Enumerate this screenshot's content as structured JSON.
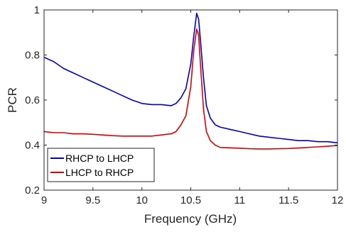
{
  "chart_data": {
    "type": "line",
    "title": "",
    "xlabel": "Frequency (GHz)",
    "ylabel": "PCR",
    "xlim": [
      9,
      12
    ],
    "ylim": [
      0.2,
      1
    ],
    "xticks": [
      9,
      9.5,
      10,
      10.5,
      11,
      11.5,
      12
    ],
    "xtick_labels": [
      "9",
      "9.5",
      "10",
      "10.5",
      "11",
      "11.5",
      "12"
    ],
    "yticks": [
      0.2,
      0.4,
      0.6,
      0.8,
      1
    ],
    "ytick_labels": [
      "0.2",
      "0.4",
      "0.6",
      "0.8",
      "1"
    ],
    "grid": false,
    "legend_position": "bottom-left",
    "series": [
      {
        "name": "RHCP to LHCP",
        "color": "#0000cc",
        "x": [
          9.0,
          9.1,
          9.2,
          9.3,
          9.4,
          9.5,
          9.6,
          9.7,
          9.8,
          9.9,
          10.0,
          10.1,
          10.2,
          10.3,
          10.35,
          10.4,
          10.45,
          10.5,
          10.53,
          10.56,
          10.58,
          10.6,
          10.63,
          10.66,
          10.7,
          10.75,
          10.8,
          10.9,
          11.0,
          11.1,
          11.2,
          11.3,
          11.4,
          11.5,
          11.6,
          11.7,
          11.8,
          11.9,
          12.0
        ],
        "y": [
          0.79,
          0.77,
          0.74,
          0.72,
          0.7,
          0.68,
          0.66,
          0.64,
          0.62,
          0.6,
          0.585,
          0.58,
          0.58,
          0.575,
          0.585,
          0.61,
          0.65,
          0.76,
          0.88,
          0.985,
          0.96,
          0.86,
          0.7,
          0.575,
          0.52,
          0.49,
          0.48,
          0.47,
          0.46,
          0.45,
          0.44,
          0.435,
          0.43,
          0.425,
          0.42,
          0.42,
          0.415,
          0.415,
          0.41
        ]
      },
      {
        "name": "LHCP to RHCP",
        "color": "#e00000",
        "x": [
          9.0,
          9.1,
          9.2,
          9.3,
          9.4,
          9.5,
          9.6,
          9.7,
          9.8,
          9.9,
          10.0,
          10.1,
          10.2,
          10.3,
          10.35,
          10.4,
          10.45,
          10.5,
          10.53,
          10.56,
          10.58,
          10.6,
          10.63,
          10.66,
          10.7,
          10.75,
          10.8,
          10.9,
          11.0,
          11.1,
          11.2,
          11.3,
          11.4,
          11.5,
          11.6,
          11.7,
          11.8,
          11.9,
          12.0
        ],
        "y": [
          0.46,
          0.455,
          0.455,
          0.45,
          0.45,
          0.448,
          0.445,
          0.442,
          0.44,
          0.44,
          0.44,
          0.44,
          0.445,
          0.45,
          0.46,
          0.49,
          0.53,
          0.66,
          0.82,
          0.915,
          0.89,
          0.75,
          0.56,
          0.46,
          0.42,
          0.4,
          0.39,
          0.388,
          0.386,
          0.384,
          0.383,
          0.383,
          0.384,
          0.385,
          0.387,
          0.39,
          0.392,
          0.395,
          0.398
        ]
      }
    ]
  }
}
